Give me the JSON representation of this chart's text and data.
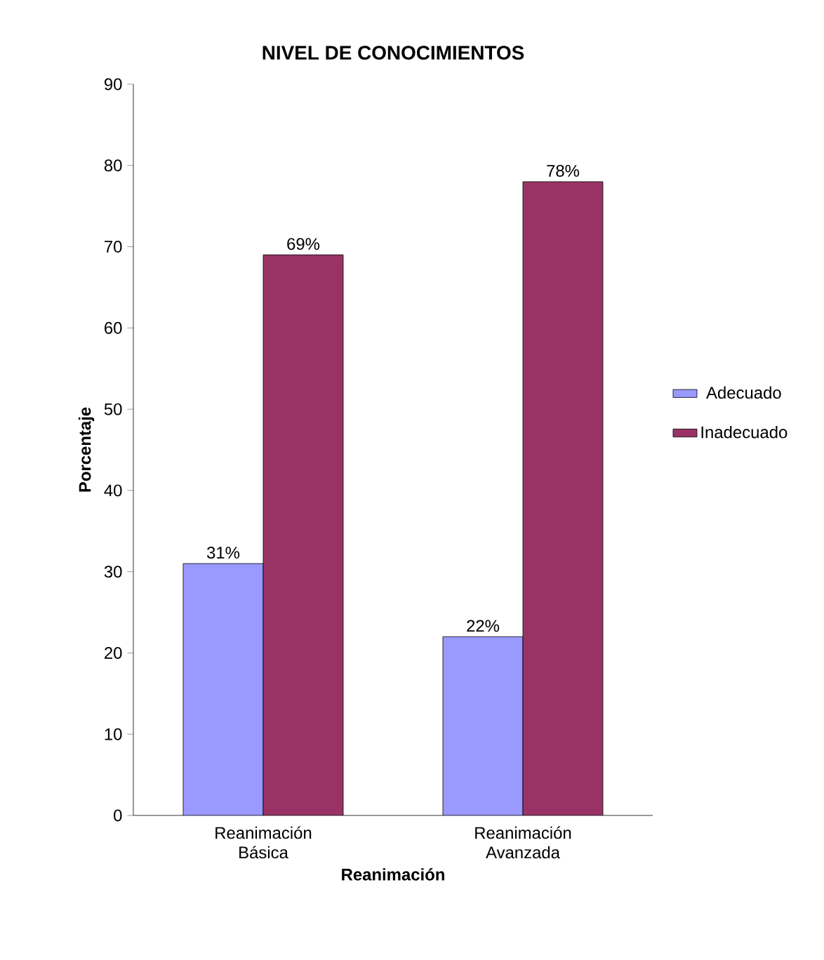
{
  "chart_data": {
    "type": "bar",
    "title": "NIVEL DE CONOCIMIENTOS",
    "xlabel": "Reanimación",
    "ylabel": "Porcentaje",
    "categories": [
      "Reanimación Básica",
      "Reanimación Avanzada"
    ],
    "series": [
      {
        "name": "Adecuado",
        "color": "#9999ff",
        "values": [
          31,
          22
        ],
        "value_labels": [
          "31%",
          "22%"
        ]
      },
      {
        "name": "Inadecuado",
        "color": "#993366",
        "values": [
          69,
          78
        ],
        "value_labels": [
          "69%",
          "78%"
        ]
      }
    ],
    "ylim": [
      0,
      90
    ],
    "yticks": [
      0,
      10,
      20,
      30,
      40,
      50,
      60,
      70,
      80,
      90
    ],
    "legend": "right"
  }
}
